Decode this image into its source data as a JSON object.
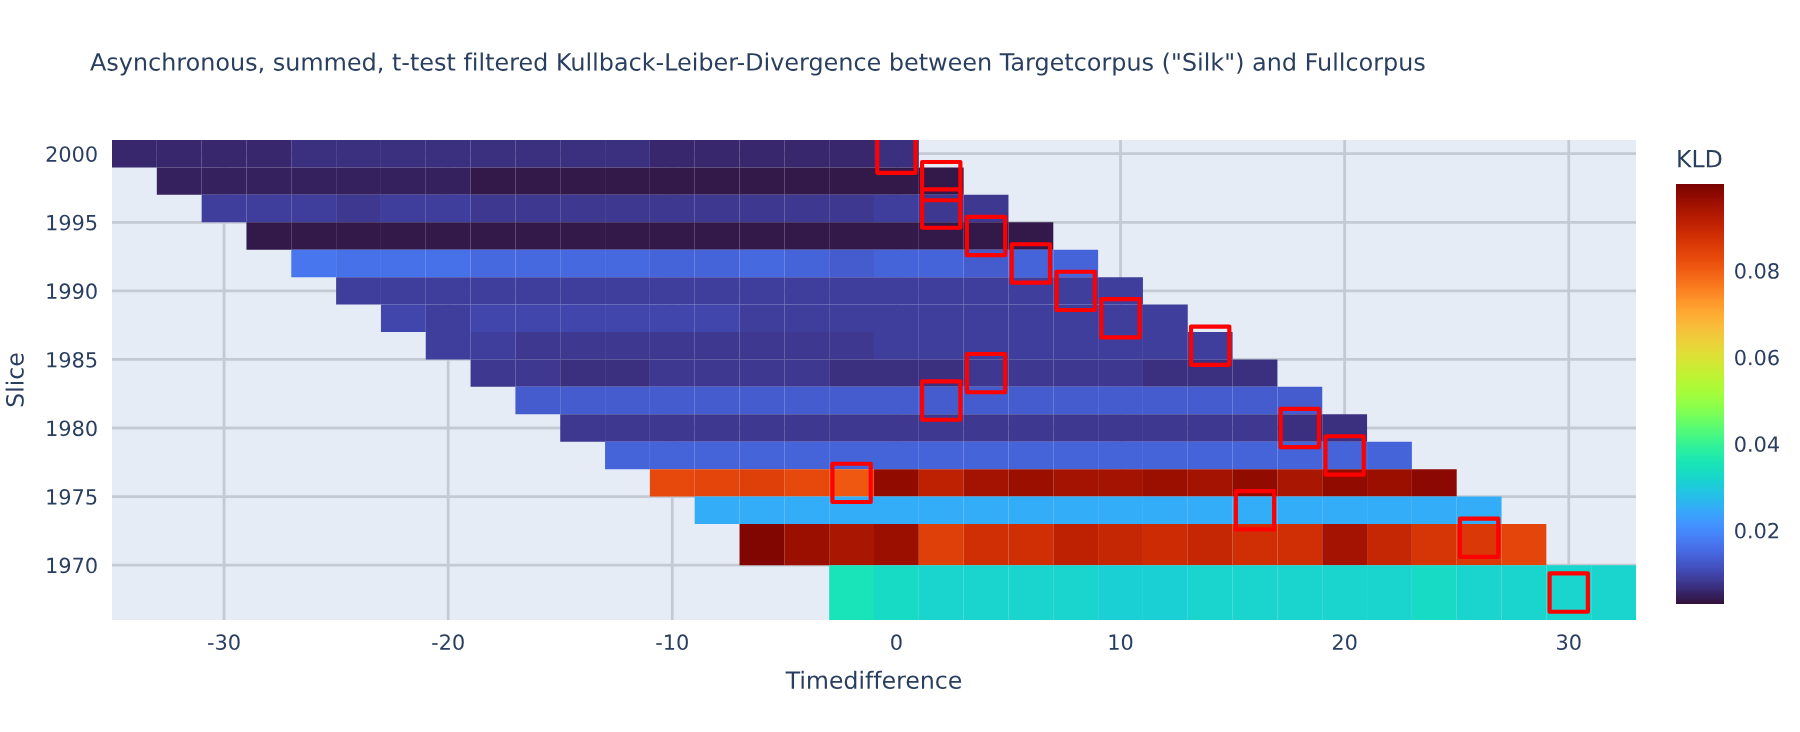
{
  "chart_data": {
    "type": "heatmap",
    "title": "Asynchronous, summed, t-test filtered Kullback-Leiber-Divergence between Targetcorpus (\"Silk\") and Fullcorpus",
    "xlabel": "Timedifference",
    "ylabel": "Slice",
    "clabel": "KLD",
    "x": [
      -34,
      -32,
      -30,
      -28,
      -26,
      -24,
      -22,
      -20,
      -18,
      -16,
      -14,
      -12,
      -10,
      -8,
      -6,
      -4,
      -2,
      0,
      2,
      4,
      6,
      8,
      10,
      12,
      14,
      16,
      18,
      20,
      22,
      24,
      26,
      28,
      30,
      32
    ],
    "y": [
      2000,
      1998,
      1996,
      1994,
      1992,
      1990,
      1988,
      1986,
      1984,
      1982,
      1980,
      1978,
      1976,
      1974,
      1972,
      1968
    ],
    "cells": [
      [
        0.006,
        0.006,
        0.006,
        0.006,
        0.007,
        0.007,
        0.007,
        0.007,
        0.007,
        0.007,
        0.007,
        0.007,
        0.006,
        0.006,
        0.006,
        0.006,
        0.006,
        0.007,
        null,
        null,
        null,
        null,
        null,
        null,
        null,
        null,
        null,
        null,
        null,
        null,
        null,
        null,
        null,
        null
      ],
      [
        null,
        0.005,
        0.005,
        0.005,
        0.005,
        0.005,
        0.005,
        0.005,
        0.004,
        0.004,
        0.004,
        0.004,
        0.004,
        0.004,
        0.004,
        0.004,
        0.004,
        0.004,
        0.004,
        null,
        null,
        null,
        null,
        null,
        null,
        null,
        null,
        null,
        null,
        null,
        null,
        null,
        null,
        null
      ],
      [
        null,
        null,
        0.009,
        0.009,
        0.009,
        0.008,
        0.009,
        0.009,
        0.008,
        0.008,
        0.008,
        0.008,
        0.008,
        0.008,
        0.008,
        0.008,
        0.008,
        0.009,
        0.008,
        0.008,
        null,
        null,
        null,
        null,
        null,
        null,
        null,
        null,
        null,
        null,
        null,
        null,
        null,
        null
      ],
      [
        null,
        null,
        null,
        0.004,
        0.004,
        0.004,
        0.004,
        0.004,
        0.004,
        0.004,
        0.004,
        0.004,
        0.004,
        0.004,
        0.004,
        0.004,
        0.004,
        0.004,
        0.004,
        0.004,
        0.004,
        null,
        null,
        null,
        null,
        null,
        null,
        null,
        null,
        null,
        null,
        null,
        null,
        null
      ],
      [
        null,
        null,
        null,
        null,
        0.017,
        0.016,
        0.016,
        0.016,
        0.015,
        0.015,
        0.015,
        0.015,
        0.014,
        0.014,
        0.015,
        0.014,
        0.013,
        0.014,
        0.014,
        0.013,
        0.014,
        0.014,
        null,
        null,
        null,
        null,
        null,
        null,
        null,
        null,
        null,
        null,
        null,
        null
      ],
      [
        null,
        null,
        null,
        null,
        null,
        0.009,
        0.009,
        0.009,
        0.009,
        0.009,
        0.009,
        0.009,
        0.009,
        0.009,
        0.009,
        0.009,
        0.009,
        0.009,
        0.009,
        0.009,
        0.009,
        0.009,
        0.009,
        null,
        null,
        null,
        null,
        null,
        null,
        null,
        null,
        null,
        null,
        null
      ],
      [
        null,
        null,
        null,
        null,
        null,
        null,
        0.01,
        0.009,
        0.01,
        0.01,
        0.01,
        0.01,
        0.01,
        0.01,
        0.009,
        0.009,
        0.009,
        0.009,
        0.009,
        0.009,
        0.009,
        0.009,
        0.009,
        0.009,
        null,
        null,
        null,
        null,
        null,
        null,
        null,
        null,
        null,
        null
      ],
      [
        null,
        null,
        null,
        null,
        null,
        null,
        null,
        0.009,
        0.009,
        0.008,
        0.008,
        0.008,
        0.008,
        0.008,
        0.008,
        0.008,
        0.008,
        0.009,
        0.009,
        0.009,
        0.009,
        0.009,
        0.009,
        0.009,
        0.009,
        null,
        null,
        null,
        null,
        null,
        null,
        null,
        null,
        null
      ],
      [
        null,
        null,
        null,
        null,
        null,
        null,
        null,
        null,
        0.008,
        0.008,
        0.007,
        0.007,
        0.008,
        0.008,
        0.008,
        0.008,
        0.007,
        0.007,
        0.007,
        0.008,
        0.008,
        0.008,
        0.008,
        0.007,
        0.007,
        0.007,
        null,
        null,
        null,
        null,
        null,
        null,
        null,
        null
      ],
      [
        null,
        null,
        null,
        null,
        null,
        null,
        null,
        null,
        null,
        0.013,
        0.013,
        0.013,
        0.013,
        0.013,
        0.013,
        0.013,
        0.013,
        0.013,
        0.013,
        0.013,
        0.013,
        0.013,
        0.013,
        0.013,
        0.013,
        0.013,
        0.013,
        null,
        null,
        null,
        null,
        null,
        null,
        null
      ],
      [
        null,
        null,
        null,
        null,
        null,
        null,
        null,
        null,
        null,
        null,
        0.008,
        0.008,
        0.008,
        0.008,
        0.008,
        0.008,
        0.008,
        0.008,
        0.008,
        0.008,
        0.008,
        0.008,
        0.008,
        0.008,
        0.008,
        0.008,
        0.007,
        0.007,
        null,
        null,
        null,
        null,
        null,
        null
      ],
      [
        null,
        null,
        null,
        null,
        null,
        null,
        null,
        null,
        null,
        null,
        null,
        0.014,
        0.014,
        0.014,
        0.014,
        0.014,
        0.014,
        0.014,
        0.014,
        0.014,
        0.014,
        0.014,
        0.014,
        0.014,
        0.014,
        0.014,
        0.014,
        0.014,
        0.014,
        null,
        null,
        null,
        null,
        null
      ],
      [
        null,
        null,
        null,
        null,
        null,
        null,
        null,
        null,
        null,
        null,
        null,
        null,
        0.083,
        0.084,
        0.085,
        0.083,
        0.081,
        0.097,
        0.091,
        0.095,
        0.096,
        0.095,
        0.095,
        0.096,
        0.095,
        0.097,
        0.094,
        0.097,
        0.096,
        0.098,
        null,
        null,
        null,
        null
      ],
      [
        null,
        null,
        null,
        null,
        null,
        null,
        null,
        null,
        null,
        null,
        null,
        null,
        null,
        0.025,
        0.025,
        0.025,
        0.025,
        0.025,
        0.025,
        0.025,
        0.025,
        0.025,
        0.025,
        0.025,
        0.025,
        0.025,
        0.025,
        0.025,
        0.025,
        0.025,
        0.025,
        null,
        null,
        null
      ],
      [
        null,
        null,
        null,
        null,
        null,
        null,
        null,
        null,
        null,
        null,
        null,
        null,
        null,
        null,
        0.099,
        0.096,
        0.094,
        0.096,
        0.085,
        0.088,
        0.088,
        0.091,
        0.09,
        0.089,
        0.09,
        0.088,
        0.088,
        0.095,
        0.09,
        0.087,
        0.086,
        0.084,
        null,
        null
      ],
      [
        null,
        null,
        null,
        null,
        null,
        null,
        null,
        null,
        null,
        null,
        null,
        null,
        null,
        null,
        null,
        null,
        0.035,
        0.033,
        0.032,
        0.032,
        0.032,
        0.032,
        0.031,
        0.031,
        0.032,
        0.032,
        0.032,
        0.032,
        0.032,
        0.033,
        0.032,
        0.032,
        0.032,
        0.032
      ]
    ],
    "clim": [
      0.003,
      0.1
    ],
    "cticks": [
      0.02,
      0.04,
      0.06,
      0.08
    ],
    "series": [
      {
        "type": "scatter",
        "marker": "square",
        "color": "#ff0000",
        "x": [
          0,
          2,
          2,
          4,
          6,
          8,
          10,
          14,
          4,
          2,
          18,
          20,
          -2,
          16,
          26,
          30
        ],
        "values": [
          2000,
          1998,
          1996,
          1994,
          1992,
          1990,
          1988,
          1986,
          1984,
          1982,
          1980,
          1978,
          1976,
          1974,
          1972,
          1968
        ]
      }
    ],
    "xlim": [
      -35,
      33
    ],
    "ylim": [
      1966,
      2001
    ],
    "xticks": [
      -30,
      -20,
      -10,
      0,
      10,
      20,
      30
    ],
    "yticks": [
      1970,
      1975,
      1980,
      1985,
      1990,
      1995,
      2000
    ],
    "grid": true
  }
}
